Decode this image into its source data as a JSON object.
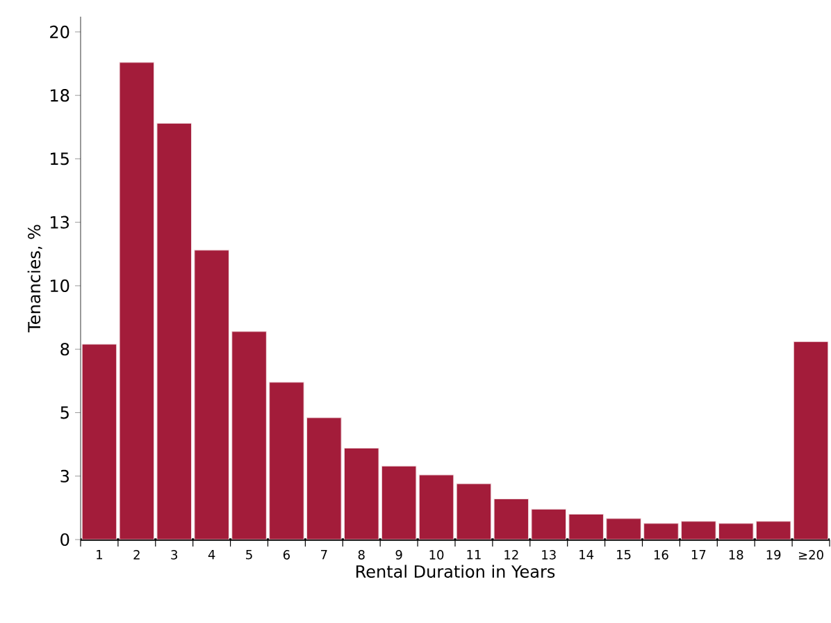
{
  "chart_data": {
    "type": "bar",
    "xlabel": "Rental Duration in Years",
    "ylabel": "Tenancies, %",
    "categories": [
      "1",
      "2",
      "3",
      "4",
      "5",
      "6",
      "7",
      "8",
      "9",
      "10",
      "11",
      "12",
      "13",
      "14",
      "15",
      "16",
      "17",
      "18",
      "19",
      "≥20"
    ],
    "values": [
      7.7,
      18.8,
      16.4,
      11.4,
      8.2,
      6.2,
      4.8,
      3.6,
      2.9,
      2.55,
      2.2,
      1.6,
      1.2,
      1.0,
      0.83,
      0.64,
      0.72,
      0.64,
      0.72,
      7.8
    ],
    "color": "#a31c3a",
    "ylim": [
      0,
      20.6
    ],
    "yticks": [
      0,
      {
        "value": 2.5,
        "label": "3"
      },
      5,
      {
        "value": 7.5,
        "label": "8"
      },
      10,
      {
        "value": 12.5,
        "label": "13"
      },
      15,
      {
        "value": 17.5,
        "label": "18"
      },
      20
    ],
    "grid": false
  }
}
